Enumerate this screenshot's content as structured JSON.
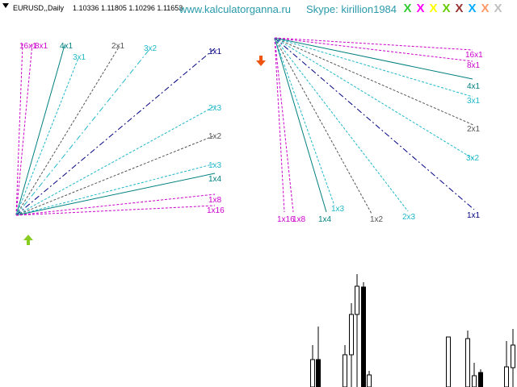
{
  "header": {
    "symbol": "EURUSD,,Daily",
    "ohlc": "1.10336 1.11805 1.10296 1.11653",
    "website": "www.kalculatorganna.ru",
    "skype": "Skype: kirillion1984"
  },
  "corner_marks": [
    {
      "glyph": "X",
      "color": "#33cc33"
    },
    {
      "glyph": "X",
      "color": "#ff00ff"
    },
    {
      "glyph": "X",
      "color": "#ffff00"
    },
    {
      "glyph": "X",
      "color": "#66cc00"
    },
    {
      "glyph": "X",
      "color": "#993333"
    },
    {
      "glyph": "X",
      "color": "#00aaff"
    },
    {
      "glyph": "X",
      "color": "#ff9966"
    },
    {
      "glyph": "X",
      "color": "#c0c0c0"
    }
  ],
  "colors": {
    "magenta": "#cc00cc",
    "teal": "#008080",
    "cyan": "#20b8c8",
    "gray": "#555555",
    "navy": "#000080",
    "up_arrow": "#88cc22",
    "down_arrow": "#ee5511",
    "candle": "#000000"
  },
  "signals": {
    "up_arrow_icon": "arrow-up-icon",
    "down_arrow_icon": "arrow-down-icon"
  },
  "fans": [
    {
      "name": "left-gann-fan",
      "direction": "up",
      "lines": [
        {
          "label": "16x1",
          "color": "magenta",
          "style": "dash"
        },
        {
          "label": "8x1",
          "color": "magenta",
          "style": "dash"
        },
        {
          "label": "4x1",
          "color": "teal",
          "style": "solid"
        },
        {
          "label": "3x1",
          "color": "cyan",
          "style": "dash"
        },
        {
          "label": "2x1",
          "color": "gray",
          "style": "dash"
        },
        {
          "label": "3x2",
          "color": "cyan",
          "style": "dashdot"
        },
        {
          "label": "1x1",
          "color": "navy",
          "style": "dashdot"
        },
        {
          "label": "2x3",
          "color": "cyan",
          "style": "dash"
        },
        {
          "label": "1x2",
          "color": "gray",
          "style": "dash"
        },
        {
          "label": "1x3",
          "color": "cyan",
          "style": "dash"
        },
        {
          "label": "1x4",
          "color": "teal",
          "style": "solid"
        },
        {
          "label": "1x8",
          "color": "magenta",
          "style": "dash"
        },
        {
          "label": "1x16",
          "color": "magenta",
          "style": "dash"
        }
      ]
    },
    {
      "name": "right-gann-fan",
      "direction": "down",
      "lines": [
        {
          "label": "1x16",
          "color": "magenta",
          "style": "dash"
        },
        {
          "label": "1x8",
          "color": "magenta",
          "style": "dash"
        },
        {
          "label": "1x4",
          "color": "teal",
          "style": "solid"
        },
        {
          "label": "1x3",
          "color": "cyan",
          "style": "dash"
        },
        {
          "label": "1x2",
          "color": "gray",
          "style": "dash"
        },
        {
          "label": "2x3",
          "color": "cyan",
          "style": "dash"
        },
        {
          "label": "1x1",
          "color": "navy",
          "style": "dashdot"
        },
        {
          "label": "3x2",
          "color": "cyan",
          "style": "dash"
        },
        {
          "label": "2x1",
          "color": "gray",
          "style": "dash"
        },
        {
          "label": "3x1",
          "color": "cyan",
          "style": "dash"
        },
        {
          "label": "4x1",
          "color": "teal",
          "style": "solid"
        },
        {
          "label": "8x1",
          "color": "magenta",
          "style": "dash"
        },
        {
          "label": "16x1",
          "color": "magenta",
          "style": "dash"
        }
      ]
    }
  ]
}
